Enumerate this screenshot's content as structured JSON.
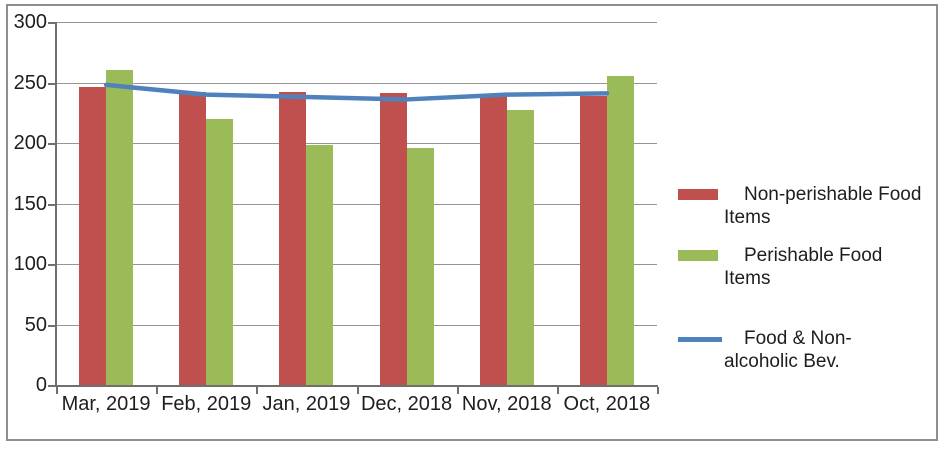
{
  "chart_data": {
    "type": "combo",
    "categories": [
      "Mar, 2019",
      "Feb, 2019",
      "Jan, 2019",
      "Dec, 2018",
      "Nov, 2018",
      "Oct, 2018"
    ],
    "series": [
      {
        "name": "Non-perishable Food Items",
        "type": "bar",
        "color": "#c0504d",
        "values": [
          246,
          242,
          242,
          241,
          240,
          239
        ]
      },
      {
        "name": "Perishable Food Items",
        "type": "bar",
        "color": "#9bbb59",
        "values": [
          260,
          220,
          198,
          196,
          227,
          255
        ]
      },
      {
        "name": "Food & Non-alcoholic Bev.",
        "type": "line",
        "color": "#4f81bd",
        "values": [
          248,
          240,
          238,
          236,
          240,
          241
        ]
      }
    ],
    "y_ticks": [
      0,
      50,
      100,
      150,
      200,
      250,
      300
    ],
    "ylim": [
      0,
      300
    ],
    "grid": true,
    "legend_position": "right",
    "title": "",
    "xlabel": "",
    "ylabel": ""
  },
  "colors": {
    "gridline": "#959595",
    "axis": "#6f6f6f",
    "text": "#1e1e1e",
    "border": "#8e8e8e",
    "background": "#ffffff"
  }
}
